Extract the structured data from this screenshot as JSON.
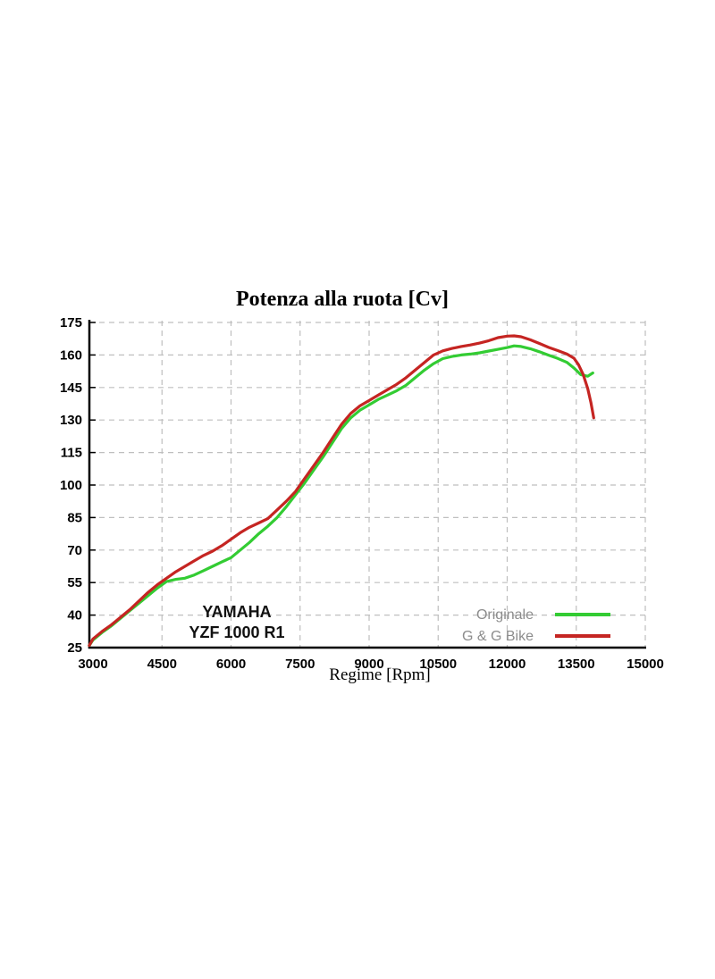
{
  "chart_data": {
    "type": "line",
    "title": "Potenza alla ruota [Cv]",
    "xlabel": "Regime [Rpm]",
    "ylabel": "",
    "x_ticks": [
      3000,
      4500,
      6000,
      7500,
      9000,
      10500,
      12000,
      13500,
      15000
    ],
    "y_ticks": [
      25,
      40,
      55,
      70,
      85,
      100,
      115,
      130,
      145,
      160,
      175
    ],
    "xlim": [
      2920,
      15000
    ],
    "ylim": [
      25,
      175
    ],
    "grid": "dashed",
    "legend_position": "inside-bottom-right",
    "annotation": {
      "line1": "YAMAHA",
      "line2": "YZF 1000 R1"
    },
    "colors": {
      "grid": "#BFBFBF",
      "axis": "#000000",
      "legend_text": "#8C8C8C",
      "background": "#FFFFFF"
    },
    "series": [
      {
        "name": "Originale",
        "color": "#33CC33",
        "x": [
          2920,
          3000,
          3200,
          3400,
          3600,
          3800,
          4000,
          4200,
          4400,
          4600,
          4800,
          5000,
          5200,
          5400,
          5600,
          5800,
          6000,
          6200,
          6400,
          6600,
          6800,
          7000,
          7200,
          7400,
          7600,
          7800,
          8000,
          8200,
          8400,
          8600,
          8800,
          9000,
          9200,
          9400,
          9600,
          9800,
          10000,
          10200,
          10400,
          10600,
          10800,
          11000,
          11200,
          11400,
          11600,
          11800,
          12000,
          12150,
          12300,
          12500,
          12700,
          12900,
          13100,
          13300,
          13450,
          13600,
          13750,
          13860
        ],
        "y": [
          26,
          28.5,
          32,
          35,
          38.5,
          42,
          45.5,
          49,
          52.5,
          55.5,
          56.5,
          57,
          58.5,
          60.5,
          62.5,
          64.5,
          66.5,
          70,
          73.5,
          77.5,
          81,
          85,
          90,
          95.5,
          101,
          107,
          113,
          119.5,
          126,
          131,
          134.5,
          137,
          139.5,
          141.5,
          143.5,
          146,
          149.5,
          153,
          156,
          158.3,
          159.3,
          160,
          160.4,
          161,
          161.8,
          162.6,
          163.4,
          164.2,
          163.9,
          162.9,
          161.5,
          159.9,
          158.4,
          156.6,
          154,
          150.9,
          150.2,
          151.7
        ]
      },
      {
        "name": "G & G Bike",
        "color": "#C52522",
        "x": [
          2920,
          3000,
          3200,
          3400,
          3600,
          3800,
          4000,
          4200,
          4400,
          4600,
          4800,
          5000,
          5200,
          5400,
          5600,
          5800,
          6000,
          6200,
          6400,
          6600,
          6800,
          7000,
          7200,
          7400,
          7600,
          7800,
          8000,
          8200,
          8400,
          8600,
          8800,
          9000,
          9200,
          9400,
          9600,
          9800,
          10000,
          10200,
          10400,
          10600,
          10800,
          11000,
          11200,
          11400,
          11600,
          11800,
          12000,
          12150,
          12300,
          12500,
          12700,
          12900,
          13100,
          13300,
          13450,
          13550,
          13650,
          13750,
          13820,
          13880
        ],
        "y": [
          26,
          29,
          32.5,
          35.5,
          39,
          42.5,
          46.5,
          50.5,
          54,
          57,
          60,
          62.5,
          65,
          67.5,
          69.5,
          72,
          75,
          78,
          80.5,
          82.5,
          84.5,
          88.5,
          92.5,
          97,
          103,
          109,
          115,
          121.5,
          128,
          133,
          136.5,
          139,
          141.5,
          144,
          146.5,
          149.5,
          153,
          156.5,
          160,
          161.9,
          163,
          163.9,
          164.6,
          165.5,
          166.6,
          168,
          168.7,
          168.8,
          168.4,
          167,
          165.3,
          163.5,
          162,
          160.4,
          158.5,
          155.5,
          151,
          144.5,
          138,
          131
        ]
      }
    ]
  }
}
